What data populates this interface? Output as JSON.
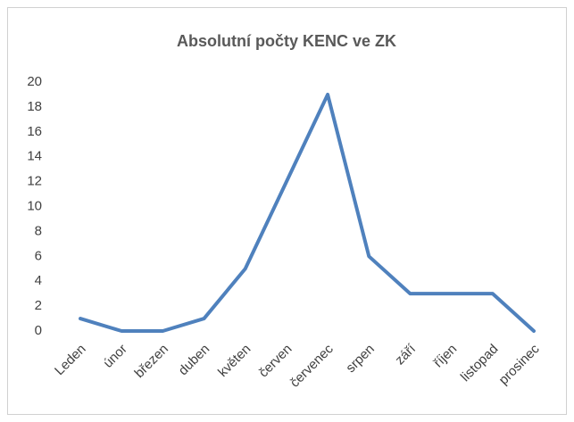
{
  "chart_data": {
    "type": "line",
    "title": "Absolutní počty KENC ve ZK",
    "categories": [
      "Leden",
      "únor",
      "březen",
      "duben",
      "květen",
      "červen",
      "červenec",
      "srpen",
      "září",
      "říjen",
      "listopad",
      "prosinec"
    ],
    "series": [
      {
        "color": "#4f81bd",
        "values": [
          1,
          0,
          0,
          1,
          5,
          12,
          19,
          6,
          3,
          3,
          3,
          0
        ]
      }
    ],
    "ylim": [
      0,
      20
    ],
    "yticks": [
      0,
      2,
      4,
      6,
      8,
      10,
      12,
      14,
      16,
      18,
      20
    ],
    "grid": false
  }
}
